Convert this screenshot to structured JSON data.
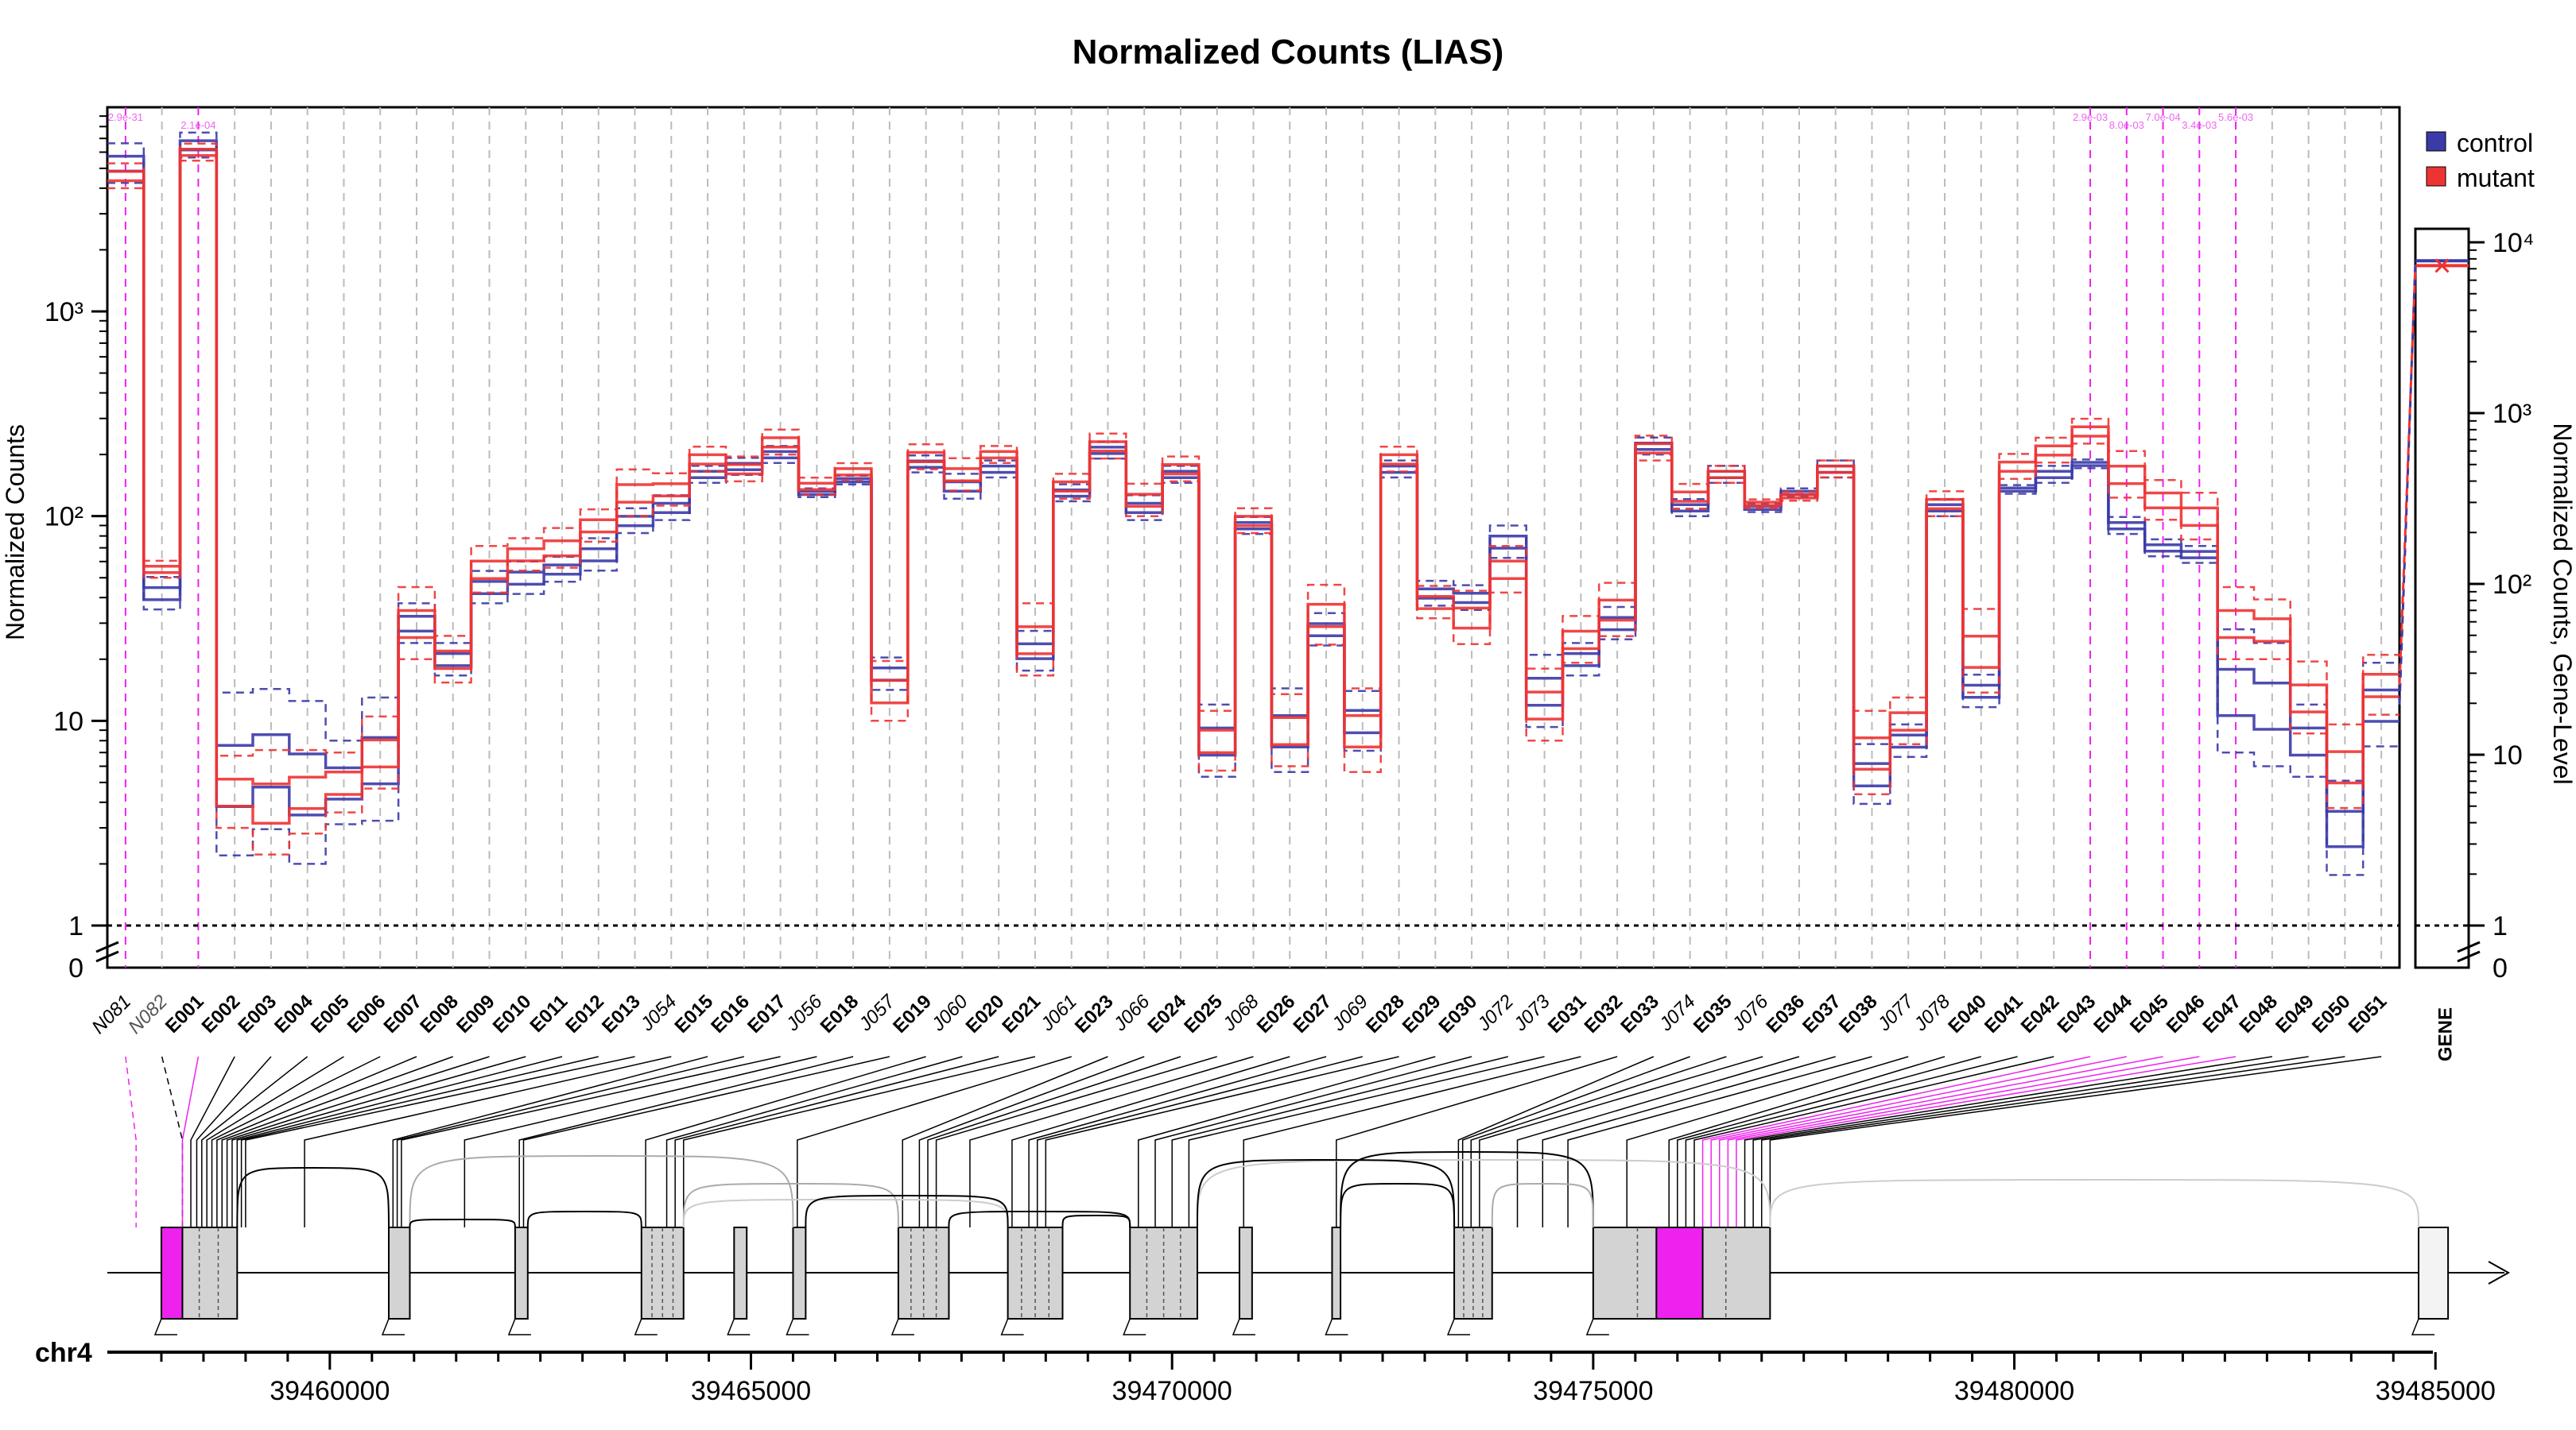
{
  "colors": {
    "control": "#3a3aa8",
    "mutant": "#ee3333",
    "highlight": "#ee22ee",
    "grid": "#bbbbbb",
    "exon_fill": "#d3d3d3",
    "axis": "#000000"
  },
  "chart_data": {
    "type": "line",
    "title": "Normalized Counts (LIAS)",
    "ylabel": "Normalized Counts",
    "ylabel_right": "Normalized Counts, Gene-Level",
    "y_scale": "log",
    "y_ticks": [
      {
        "label": "1",
        "value": 1
      },
      {
        "label": "10",
        "value": 10
      },
      {
        "label": "10²",
        "value": 100
      },
      {
        "label": "10³",
        "value": 1000
      }
    ],
    "y_zero_label": "0",
    "y_ticks_right": [
      {
        "label": "1",
        "value": 1
      },
      {
        "label": "10",
        "value": 10
      },
      {
        "label": "10²",
        "value": 100
      },
      {
        "label": "10³",
        "value": 1000
      },
      {
        "label": "10⁴",
        "value": 10000
      }
    ],
    "y_zero_label_right": "0",
    "legend": {
      "position": "top-right",
      "entries": [
        "control",
        "mutant"
      ]
    },
    "grid": "vertical dashed",
    "features": [
      "N081",
      "N082",
      "E001",
      "E002",
      "E003",
      "E004",
      "E005",
      "E006",
      "E007",
      "E008",
      "E009",
      "E010",
      "E011",
      "E012",
      "E013",
      "J054",
      "E015",
      "E016",
      "E017",
      "J056",
      "E018",
      "J057",
      "E019",
      "J060",
      "E020",
      "E021",
      "J061",
      "E023",
      "J066",
      "E024",
      "E025",
      "J068",
      "E026",
      "E027",
      "J069",
      "E028",
      "E029",
      "E030",
      "J072",
      "J073",
      "E031",
      "E032",
      "E033",
      "J074",
      "E035",
      "J076",
      "E036",
      "E037",
      "E038",
      "J077",
      "J078",
      "E040",
      "E041",
      "E042",
      "E043",
      "E044",
      "E045",
      "E046",
      "E047",
      "E048",
      "E049",
      "E050",
      "E051"
    ],
    "highlighted_features": [
      "N081",
      "E001",
      "E043",
      "E044",
      "E045",
      "E046",
      "E047"
    ],
    "pvalue_labels": [
      "2.9e-31",
      "2.1e-04",
      "2.9e-03",
      "8.0e-03",
      "7.0e-04",
      "3.4e-03",
      "5.6e-03"
    ],
    "series": [
      {
        "name": "control",
        "values": [
          5300,
          42,
          6500,
          5.5,
          6.5,
          5,
          5,
          6.5,
          30,
          20,
          45,
          50,
          55,
          65,
          95,
          110,
          160,
          175,
          200,
          130,
          150,
          17,
          180,
          140,
          170,
          22,
          130,
          210,
          110,
          160,
          8,
          90,
          9,
          28,
          10,
          170,
          42,
          40,
          75,
          14,
          20,
          30,
          220,
          110,
          160,
          110,
          130,
          170,
          5.5,
          8,
          110,
          14,
          135,
          160,
          180,
          90,
          70,
          65,
          14,
          12,
          8,
          3,
          12
        ],
        "spread": [
          1.25,
          1.2,
          1.15,
          2.5,
          2.2,
          2.5,
          1.6,
          2.0,
          1.25,
          1.2,
          1.2,
          1.2,
          1.15,
          1.2,
          1.15,
          1.15,
          1.1,
          1.1,
          1.1,
          1.05,
          1.05,
          1.2,
          1.1,
          1.15,
          1.1,
          1.25,
          1.1,
          1.1,
          1.15,
          1.1,
          1.5,
          1.1,
          1.6,
          1.2,
          1.4,
          1.1,
          1.15,
          1.15,
          1.2,
          1.5,
          1.2,
          1.2,
          1.1,
          1.1,
          1.1,
          1.05,
          1.05,
          1.1,
          1.4,
          1.2,
          1.1,
          1.2,
          1.05,
          1.1,
          1.05,
          1.1,
          1.1,
          1.1,
          2.0,
          2.0,
          1.5,
          1.7,
          1.6
        ]
      },
      {
        "name": "mutant",
        "values": [
          4600,
          55,
          6000,
          4.5,
          4,
          4.5,
          5,
          7,
          30,
          20,
          55,
          65,
          70,
          90,
          130,
          135,
          190,
          170,
          230,
          140,
          165,
          14,
          195,
          160,
          200,
          25,
          140,
          220,
          120,
          170,
          8,
          95,
          9,
          33,
          9,
          190,
          38,
          32,
          55,
          12,
          25,
          35,
          215,
          125,
          160,
          115,
          125,
          170,
          7,
          10,
          115,
          22,
          175,
          210,
          260,
          160,
          120,
          100,
          30,
          28,
          13,
          6,
          15
        ],
        "spread": [
          1.15,
          1.1,
          1.1,
          1.5,
          1.8,
          1.6,
          1.4,
          1.5,
          1.5,
          1.3,
          1.3,
          1.2,
          1.25,
          1.2,
          1.3,
          1.2,
          1.15,
          1.15,
          1.15,
          1.1,
          1.1,
          1.4,
          1.15,
          1.2,
          1.1,
          1.5,
          1.15,
          1.15,
          1.2,
          1.15,
          1.4,
          1.15,
          1.5,
          1.4,
          1.6,
          1.15,
          1.2,
          1.35,
          1.3,
          1.5,
          1.3,
          1.35,
          1.15,
          1.15,
          1.1,
          1.05,
          1.05,
          1.1,
          1.6,
          1.3,
          1.15,
          1.6,
          1.15,
          1.15,
          1.15,
          1.3,
          1.25,
          1.3,
          1.5,
          1.4,
          1.5,
          1.6,
          1.4
        ]
      }
    ],
    "gene_level": {
      "label": "GENE",
      "control": 7800,
      "mutant": 7300
    },
    "genome_axis": {
      "chromosome": "chr4",
      "start": 39457500,
      "end": 39485300,
      "ticks": [
        {
          "label": "39460000",
          "value": 39460000
        },
        {
          "label": "39465000",
          "value": 39465000
        },
        {
          "label": "39470000",
          "value": 39470000
        },
        {
          "label": "39475000",
          "value": 39475000
        },
        {
          "label": "39480000",
          "value": 39480000
        },
        {
          "label": "39485000",
          "value": 39485000
        }
      ],
      "exon_blocks": [
        [
          39458000,
          39458900
        ],
        [
          39460700,
          39460950
        ],
        [
          39462200,
          39462350
        ],
        [
          39463700,
          39464200
        ],
        [
          39464800,
          39464950
        ],
        [
          39465500,
          39465650
        ],
        [
          39466750,
          39467350
        ],
        [
          39468050,
          39468700
        ],
        [
          39469500,
          39470300
        ],
        [
          39470800,
          39470950
        ],
        [
          39471900,
          39472000
        ],
        [
          39473350,
          39473800
        ],
        [
          39475000,
          39477100
        ],
        [
          39484800,
          39485150
        ]
      ],
      "highlight_blocks": [
        [
          39458000,
          39458250
        ],
        [
          39475750,
          39476300
        ]
      ]
    }
  }
}
